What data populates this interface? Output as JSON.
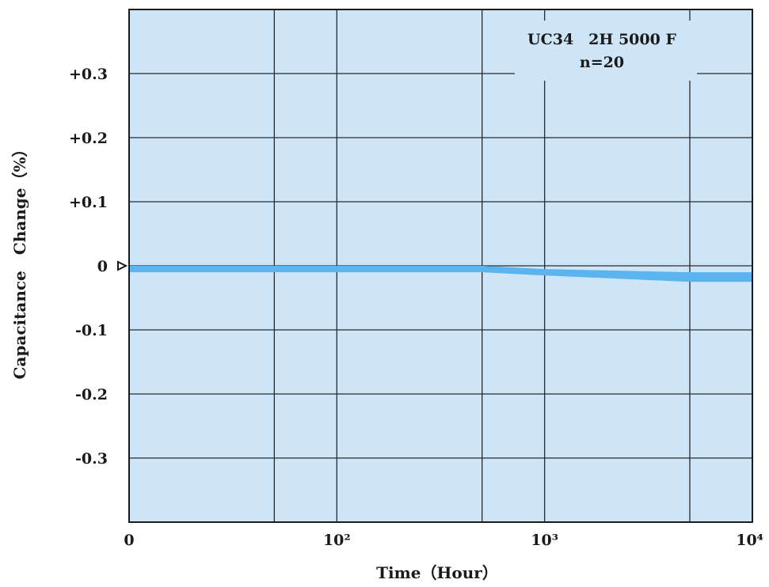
{
  "chart_data": {
    "type": "area",
    "xlabel": "Time（Hour）",
    "ylabel": "Capacitance　Change（%）",
    "legend": {
      "line1": "UC34　2H 5000 F",
      "line2": "n=20",
      "placement": "top-right"
    },
    "x_tick_labels": [
      "0",
      "10²",
      "10³",
      "10⁴"
    ],
    "y_tick_labels": [
      "+0.3",
      "+0.2",
      "+0.1",
      "0",
      "-0.1",
      "-0.2",
      "-0.3"
    ],
    "y_ticks": [
      0.3,
      0.2,
      0.1,
      0,
      -0.1,
      -0.2,
      -0.3
    ],
    "ylim": [
      -0.4,
      0.4
    ],
    "xscale": "log",
    "xlim": [
      10,
      10000
    ],
    "x_gridlines": [
      50,
      100,
      500,
      1000,
      5000
    ],
    "grid": true,
    "initial_marker_value": 0,
    "series": [
      {
        "x": [
          10,
          500,
          1000,
          5000,
          10000
        ],
        "upper": [
          0.0,
          0.0,
          -0.005,
          -0.01,
          -0.01
        ],
        "lower": [
          -0.01,
          -0.01,
          -0.015,
          -0.025,
          -0.025
        ]
      }
    ],
    "colors": {
      "plot_bg": "#cde5f7",
      "band": "#5bb4ee",
      "grid": "#2a2a2a",
      "frame": "#1a1a1a"
    }
  }
}
